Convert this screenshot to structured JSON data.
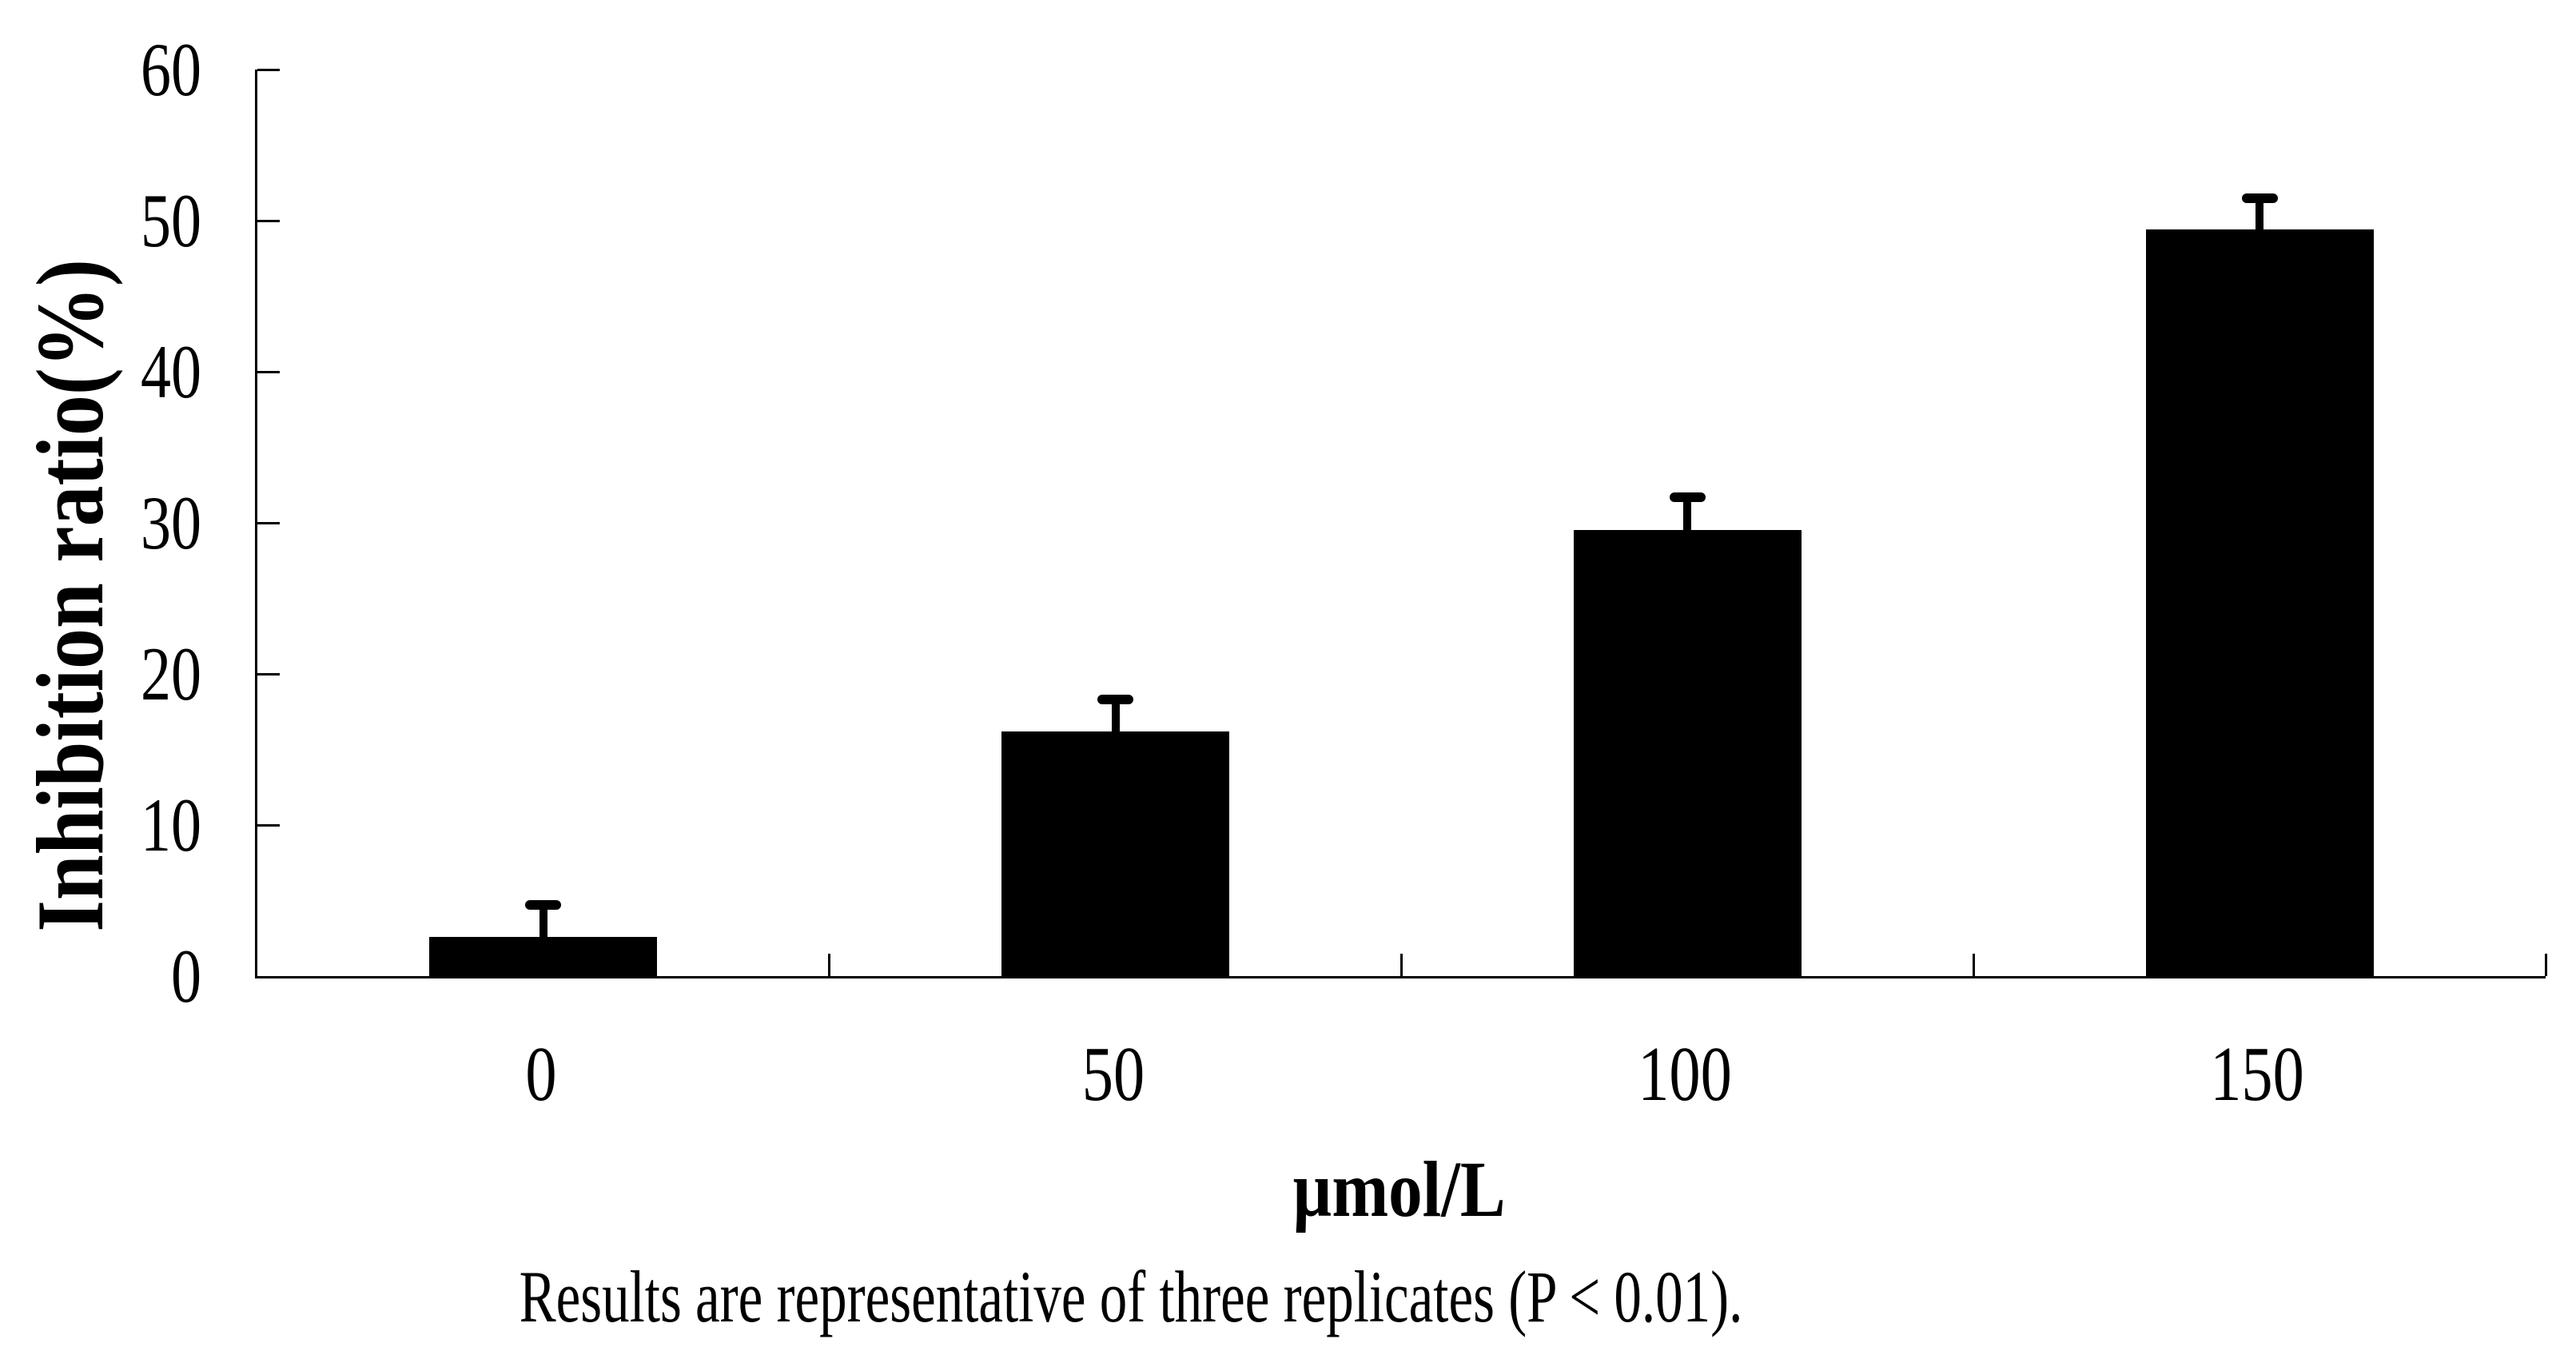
{
  "chart_data": {
    "type": "bar",
    "title": "",
    "categories": [
      "0",
      "50",
      "100",
      "150"
    ],
    "values": [
      2.6,
      16.2,
      29.5,
      49.4
    ],
    "errors": [
      2.1,
      2.1,
      2.2,
      2.1
    ],
    "series_note": "single series, solid black bars with upper error bars",
    "xlabel": "µmol/L",
    "ylabel": "Inhibition ratio(%)",
    "ylim": [
      0,
      60
    ],
    "yticks": [
      0,
      10,
      20,
      30,
      40,
      50,
      60
    ],
    "grid": "off",
    "legend": "none",
    "bar_color": "#000000",
    "axis_color": "#000000",
    "background_color": "#ffffff",
    "caption": "Results are representative of three replicates (P < 0.01)."
  }
}
